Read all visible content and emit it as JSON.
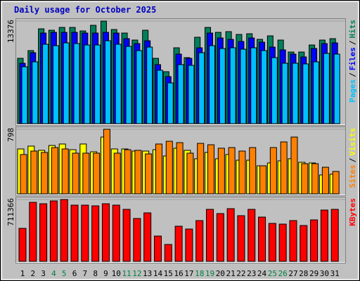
{
  "title": "Daily usage for October 2025",
  "title_color": "#0000c0",
  "legend_separator": "/",
  "chart_data": [
    {
      "type": "bar",
      "ylim": [
        0,
        13376
      ],
      "yticks": [
        13376
      ],
      "series": [
        {
          "name": "Hits",
          "color": "#00805c",
          "values": [
            8519,
            9526,
            12366,
            12183,
            12549,
            12549,
            12091,
            12824,
            13376,
            12274,
            11816,
            10900,
            12183,
            8519,
            6778,
            9893,
            8610,
            11267,
            12549,
            11908,
            12000,
            11633,
            11725,
            10992,
            11450,
            10900,
            9343,
            9343,
            10259,
            10900,
            11084
          ]
        },
        {
          "name": "Files",
          "color": "#0000ff",
          "values": [
            7878,
            9252,
            11816,
            11908,
            11908,
            11908,
            11816,
            11816,
            11908,
            11816,
            11084,
            10442,
            10809,
            7694,
            6137,
            9068,
            8519,
            9893,
            11816,
            11175,
            10992,
            10717,
            11175,
            10626,
            9984,
            9618,
            9068,
            8702,
            9801,
            10442,
            10534
          ]
        },
        {
          "name": "Pages",
          "color": "#00c0ff",
          "values": [
            7420,
            8061,
            10351,
            10168,
            10534,
            10442,
            10259,
            10259,
            10809,
            10351,
            10076,
            9526,
            9984,
            6962,
            5313,
            7694,
            7603,
            9252,
            10168,
            9801,
            9893,
            9710,
            9893,
            9526,
            8610,
            7878,
            7878,
            7786,
            8061,
            9160,
            9068
          ]
        }
      ]
    },
    {
      "type": "bar",
      "ylim": [
        0,
        798
      ],
      "yticks": [
        798
      ],
      "series": [
        {
          "name": "Visits",
          "color": "#ffff00",
          "values": [
            555,
            590,
            538,
            598,
            616,
            546,
            616,
            520,
            702,
            555,
            555,
            529,
            529,
            546,
            468,
            564,
            538,
            434,
            512,
            434,
            486,
            416,
            416,
            347,
            382,
            408,
            434,
            390,
            382,
            234,
            243
          ]
        },
        {
          "name": "Sites",
          "color": "#ff8000",
          "values": [
            486,
            529,
            512,
            572,
            555,
            503,
            503,
            503,
            798,
            503,
            546,
            538,
            494,
            616,
            650,
            633,
            503,
            624,
            607,
            564,
            572,
            529,
            572,
            347,
            572,
            642,
            702,
            373,
            373,
            329,
            277
          ]
        }
      ]
    },
    {
      "type": "bar",
      "ylim": [
        0,
        711366
      ],
      "yticks": [
        711366
      ],
      "categories": [
        "1",
        "2",
        "3",
        "4",
        "5",
        "6",
        "7",
        "8",
        "9",
        "10",
        "11",
        "12",
        "13",
        "14",
        "15",
        "16",
        "17",
        "18",
        "19",
        "20",
        "21",
        "22",
        "23",
        "24",
        "25",
        "26",
        "27",
        "28",
        "29",
        "30",
        "31"
      ],
      "category_colors": [
        "#000000",
        "#000000",
        "#000000",
        "#008040",
        "#008040",
        "#000000",
        "#000000",
        "#000000",
        "#000000",
        "#000000",
        "#008040",
        "#008040",
        "#000000",
        "#000000",
        "#000000",
        "#000000",
        "#000000",
        "#008040",
        "#008040",
        "#000000",
        "#000000",
        "#000000",
        "#000000",
        "#000000",
        "#008040",
        "#008040",
        "#000000",
        "#000000",
        "#000000",
        "#000000",
        "#000000"
      ],
      "series": [
        {
          "name": "KBytes",
          "color": "#ff0000",
          "values": [
            379948,
            679056,
            662888,
            695224,
            711366,
            646720,
            646720,
            638636,
            662888,
            646720,
            598216,
            493124,
            557796,
            291024,
            194016,
            404200,
            371864,
            468872,
            598216,
            549712,
            606300,
            525460,
            598216,
            509292,
            436536,
            428452,
            468872,
            412284,
            476956,
            590132,
            598216
          ]
        }
      ]
    }
  ]
}
